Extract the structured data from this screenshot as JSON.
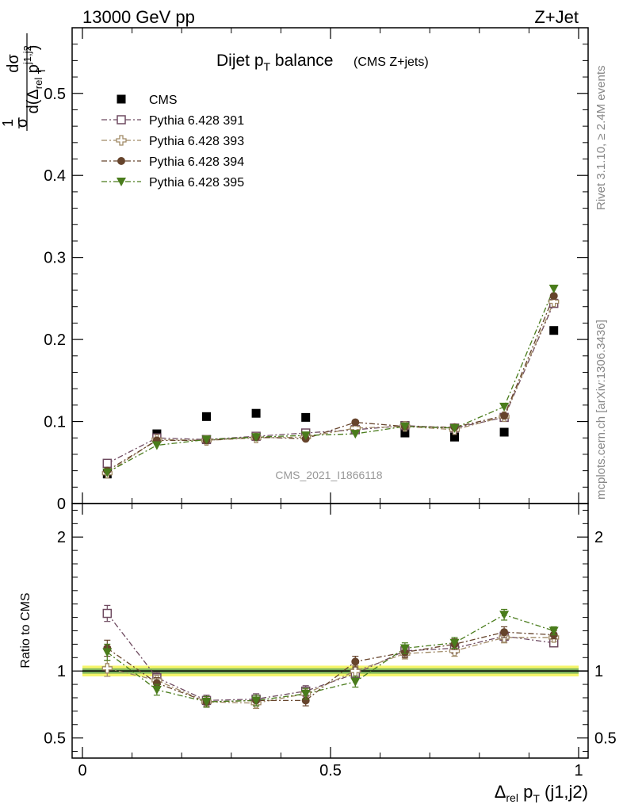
{
  "header": {
    "left": "13000 GeV pp",
    "right": "Z+Jet"
  },
  "side_labels": {
    "rivet": "Rivet 3.1.10, ≥ 2.4M events",
    "mcplots": "mcplots.cern.ch [arXiv:1306.3436]"
  },
  "chart_data": [
    {
      "type": "scatter",
      "title_main": "Dijet p",
      "title_sub": "T",
      "title_tail": " balance",
      "title_note": "(CMS Z+jets)",
      "watermark": "CMS_2021_I1866118",
      "ylabel_parts": {
        "one": "1",
        "sigma": "σ",
        "dsigma": "dσ",
        "d": "d(Δ",
        "rel": "rel",
        "p": " p",
        "sup": "j1,j2",
        "T": "T",
        "close": ")"
      },
      "xlim": [
        0,
        1
      ],
      "ylim": [
        0,
        0.58
      ],
      "yticks": [
        0,
        0.1,
        0.2,
        0.3,
        0.4,
        0.5
      ],
      "ytick_labels": [
        "0",
        "0.1",
        "0.2",
        "0.3",
        "0.4",
        "0.5"
      ],
      "legend_position": "top-left",
      "x": [
        0.05,
        0.15,
        0.25,
        0.35,
        0.45,
        0.55,
        0.65,
        0.75,
        0.85,
        0.95
      ],
      "series": [
        {
          "name": "CMS",
          "color": "#000000",
          "marker": "filled-square",
          "line": "none",
          "values": [
            0.036,
            0.085,
            0.106,
            0.11,
            0.105,
            0.09,
            0.086,
            0.081,
            0.087,
            0.211
          ]
        },
        {
          "name": "Pythia 6.428 391",
          "color": "#6e4a60",
          "marker": "open-square",
          "line": "dash-dot",
          "values": [
            0.049,
            0.08,
            0.078,
            0.082,
            0.086,
            0.09,
            0.095,
            0.092,
            0.105,
            0.244
          ]
        },
        {
          "name": "Pythia 6.428 393",
          "color": "#a08a66",
          "marker": "open-cross",
          "line": "dash-dot",
          "values": [
            0.037,
            0.078,
            0.077,
            0.08,
            0.081,
            0.092,
            0.094,
            0.09,
            0.106,
            0.246
          ]
        },
        {
          "name": "Pythia 6.428 394",
          "color": "#66442c",
          "marker": "filled-circle",
          "line": "dash-dot",
          "values": [
            0.04,
            0.077,
            0.077,
            0.081,
            0.079,
            0.099,
            0.094,
            0.093,
            0.107,
            0.253
          ]
        },
        {
          "name": "Pythia 6.428 395",
          "color": "#4a7c1c",
          "marker": "filled-triangle-down",
          "line": "dash-dot",
          "values": [
            0.038,
            0.071,
            0.078,
            0.081,
            0.083,
            0.085,
            0.094,
            0.092,
            0.118,
            0.262
          ]
        }
      ]
    },
    {
      "type": "scatter",
      "ylabel": "Ratio to CMS",
      "xlabel_parts": {
        "delta": "Δ",
        "rel": "rel",
        "p": " p",
        "T": "T",
        "tail": " (j1,j2)"
      },
      "xlim": [
        0,
        1
      ],
      "ylim": [
        0.35,
        2.25
      ],
      "xticks": [
        0,
        0.5,
        1
      ],
      "xtick_labels": [
        "0",
        "0.5",
        "1"
      ],
      "yticks": [
        0.5,
        1,
        2
      ],
      "ytick_labels": [
        "0.5",
        "1",
        "2"
      ],
      "x": [
        0.05,
        0.15,
        0.25,
        0.35,
        0.45,
        0.55,
        0.65,
        0.75,
        0.85,
        0.95
      ],
      "band": {
        "inner": 0.02,
        "outer": 0.04,
        "inner_color": "#2e8b57",
        "outer_color": "#f5f56a"
      },
      "series": [
        {
          "name": "Pythia 6.428 391",
          "color": "#6e4a60",
          "marker": "open-square",
          "line": "dash-dot",
          "values": [
            1.43,
            0.95,
            0.78,
            0.79,
            0.85,
            0.98,
            1.15,
            1.17,
            1.26,
            1.21
          ],
          "errors": [
            0.06,
            0.04,
            0.04,
            0.04,
            0.04,
            0.04,
            0.04,
            0.04,
            0.04,
            0.03
          ]
        },
        {
          "name": "Pythia 6.428 393",
          "color": "#a08a66",
          "marker": "open-cross",
          "line": "dash-dot",
          "values": [
            1.02,
            0.93,
            0.77,
            0.76,
            0.83,
            1.0,
            1.13,
            1.15,
            1.25,
            1.25
          ],
          "errors": [
            0.06,
            0.04,
            0.04,
            0.04,
            0.04,
            0.04,
            0.04,
            0.04,
            0.04,
            0.03
          ]
        },
        {
          "name": "Pythia 6.428 394",
          "color": "#66442c",
          "marker": "filled-circle",
          "line": "dash-dot",
          "values": [
            1.17,
            0.91,
            0.77,
            0.78,
            0.78,
            1.07,
            1.14,
            1.2,
            1.29,
            1.27
          ],
          "errors": [
            0.06,
            0.04,
            0.04,
            0.04,
            0.04,
            0.04,
            0.04,
            0.04,
            0.04,
            0.03
          ]
        },
        {
          "name": "Pythia 6.428 395",
          "color": "#4a7c1c",
          "marker": "filled-triangle-down",
          "line": "dash-dot",
          "values": [
            1.14,
            0.86,
            0.77,
            0.78,
            0.83,
            0.92,
            1.17,
            1.21,
            1.42,
            1.3
          ],
          "errors": [
            0.06,
            0.04,
            0.04,
            0.04,
            0.04,
            0.04,
            0.04,
            0.04,
            0.04,
            0.03
          ]
        }
      ]
    }
  ]
}
